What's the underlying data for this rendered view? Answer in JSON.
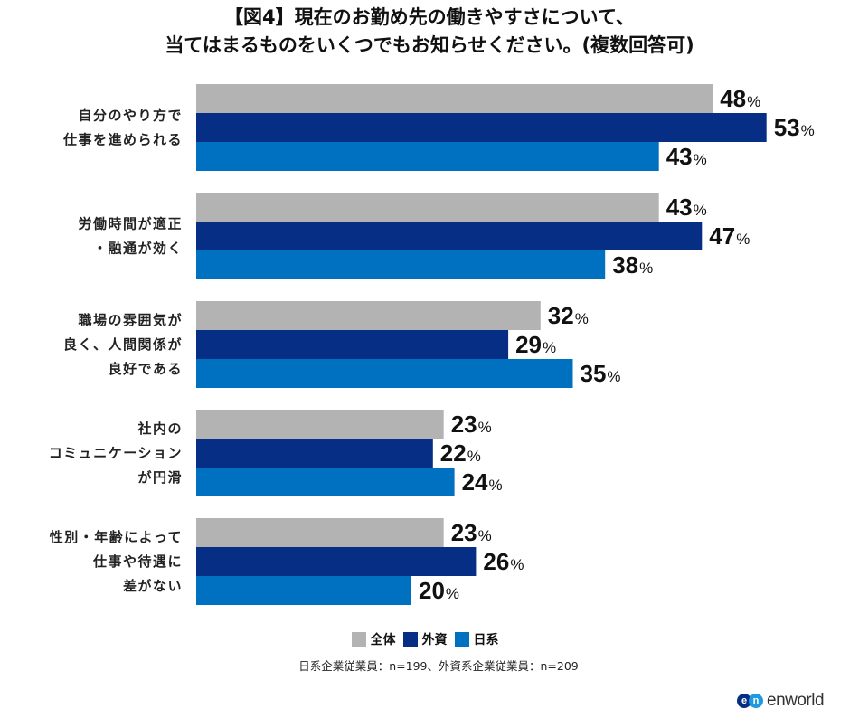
{
  "chart_data": {
    "type": "bar",
    "orientation": "horizontal",
    "title": "【図4】現在のお勤め先の働きやすさについて、",
    "subtitle": "当てはまるものをいくつでもお知らせください。(複数回答可)",
    "categories": [
      [
        "自分のやり方で",
        "仕事を進められる"
      ],
      [
        "労働時間が適正",
        "・融通が効く"
      ],
      [
        "職場の雰囲気が",
        "良く、人間関係が",
        "良好である"
      ],
      [
        "社内の",
        "コミュニケーション",
        "が円滑"
      ],
      [
        "性別・年齢によって",
        "仕事や待遇に",
        "差がない"
      ]
    ],
    "series": [
      {
        "name": "全体",
        "color": "#b3b3b3",
        "values": [
          48,
          43,
          32,
          23,
          23
        ]
      },
      {
        "name": "外資",
        "color": "#062e84",
        "values": [
          53,
          47,
          29,
          22,
          26
        ]
      },
      {
        "name": "日系",
        "color": "#0070c0",
        "values": [
          43,
          38,
          35,
          24,
          20
        ]
      }
    ],
    "unit": "%",
    "xlim": [
      0,
      60
    ],
    "grid": false,
    "legend_position": "bottom"
  },
  "note": "日系企業従業員：n=199、外資系企業従業員：n=209",
  "logo": {
    "badge_left": "e",
    "badge_right": "n",
    "text": "enworld",
    "colors": [
      "#062e84",
      "#1e9ae0"
    ]
  }
}
